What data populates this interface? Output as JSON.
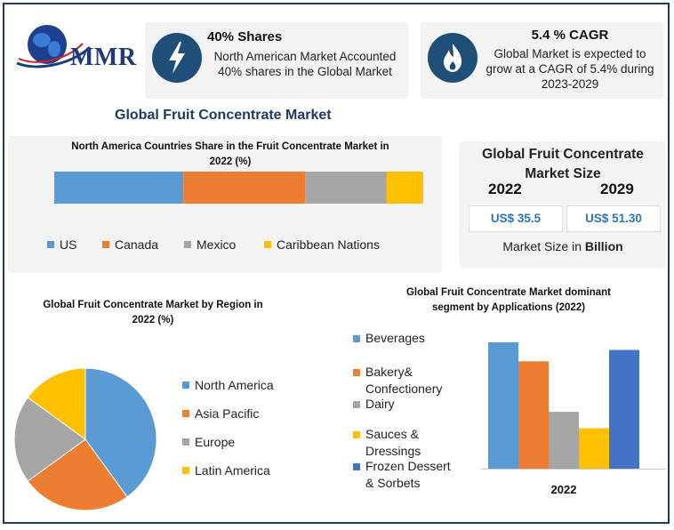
{
  "brand": {
    "logo_text": "MMR"
  },
  "info_cards": [
    {
      "title": "40% Shares",
      "text": "North American Market Accounted 40% shares in the Global Market",
      "icon": "lightning-bolt-icon"
    },
    {
      "title": "5.4 % CAGR",
      "text": "Global Market is expected to grow at a CAGR of 5.4% during 2023-2029",
      "icon": "flame-icon"
    }
  ],
  "main_title": "Global Fruit Concentrate Market",
  "market_size": {
    "title": "Global Fruit Concentrate Market Size",
    "year_a": "2022",
    "year_b": "2029",
    "value_a": "US$ 35.5",
    "value_b": "US$ 51.30",
    "unit_prefix": "Market Size in ",
    "unit_bold": "Billion"
  },
  "colors": {
    "blue": "#5b9bd5",
    "orange": "#ed7d31",
    "gray": "#a5a5a5",
    "yellow": "#ffc000",
    "darkblue": "#4472c4"
  },
  "chart_data": [
    {
      "type": "bar",
      "orientation": "horizontal-stacked",
      "title": "North America Countries Share in the Fruit Concentrate Market in 2022 (%)",
      "categories": [
        "US",
        "Canada",
        "Mexico",
        "Caribbean Nations"
      ],
      "values": [
        35,
        33,
        22,
        10
      ],
      "colors": [
        "#5b9bd5",
        "#ed7d31",
        "#a5a5a5",
        "#ffc000"
      ],
      "legend": "bottom"
    },
    {
      "type": "pie",
      "title": "Global Fruit Concentrate Market by Region in 2022 (%)",
      "categories": [
        "North America",
        "Asia Pacific",
        "Europe",
        "Latin America"
      ],
      "values": [
        40,
        25,
        20,
        15
      ],
      "colors": [
        "#5b9bd5",
        "#ed7d31",
        "#a5a5a5",
        "#ffc000"
      ],
      "legend": "right"
    },
    {
      "type": "bar",
      "title": "Global Fruit Concentrate Market dominant segment by Applications (2022)",
      "categories": [
        "2022"
      ],
      "series": [
        {
          "name": "Beverages",
          "values": [
            100
          ],
          "color": "#5b9bd5"
        },
        {
          "name": "Bakery& Confectionery",
          "values": [
            85
          ],
          "color": "#ed7d31"
        },
        {
          "name": "Dairy",
          "values": [
            45
          ],
          "color": "#a5a5a5"
        },
        {
          "name": "Sauces & Dressings",
          "values": [
            32
          ],
          "color": "#ffc000"
        },
        {
          "name": "Frozen Dessert & Sorbets",
          "values": [
            94
          ],
          "color": "#4472c4"
        }
      ],
      "ylim": [
        0,
        100
      ],
      "legend": "left"
    }
  ]
}
